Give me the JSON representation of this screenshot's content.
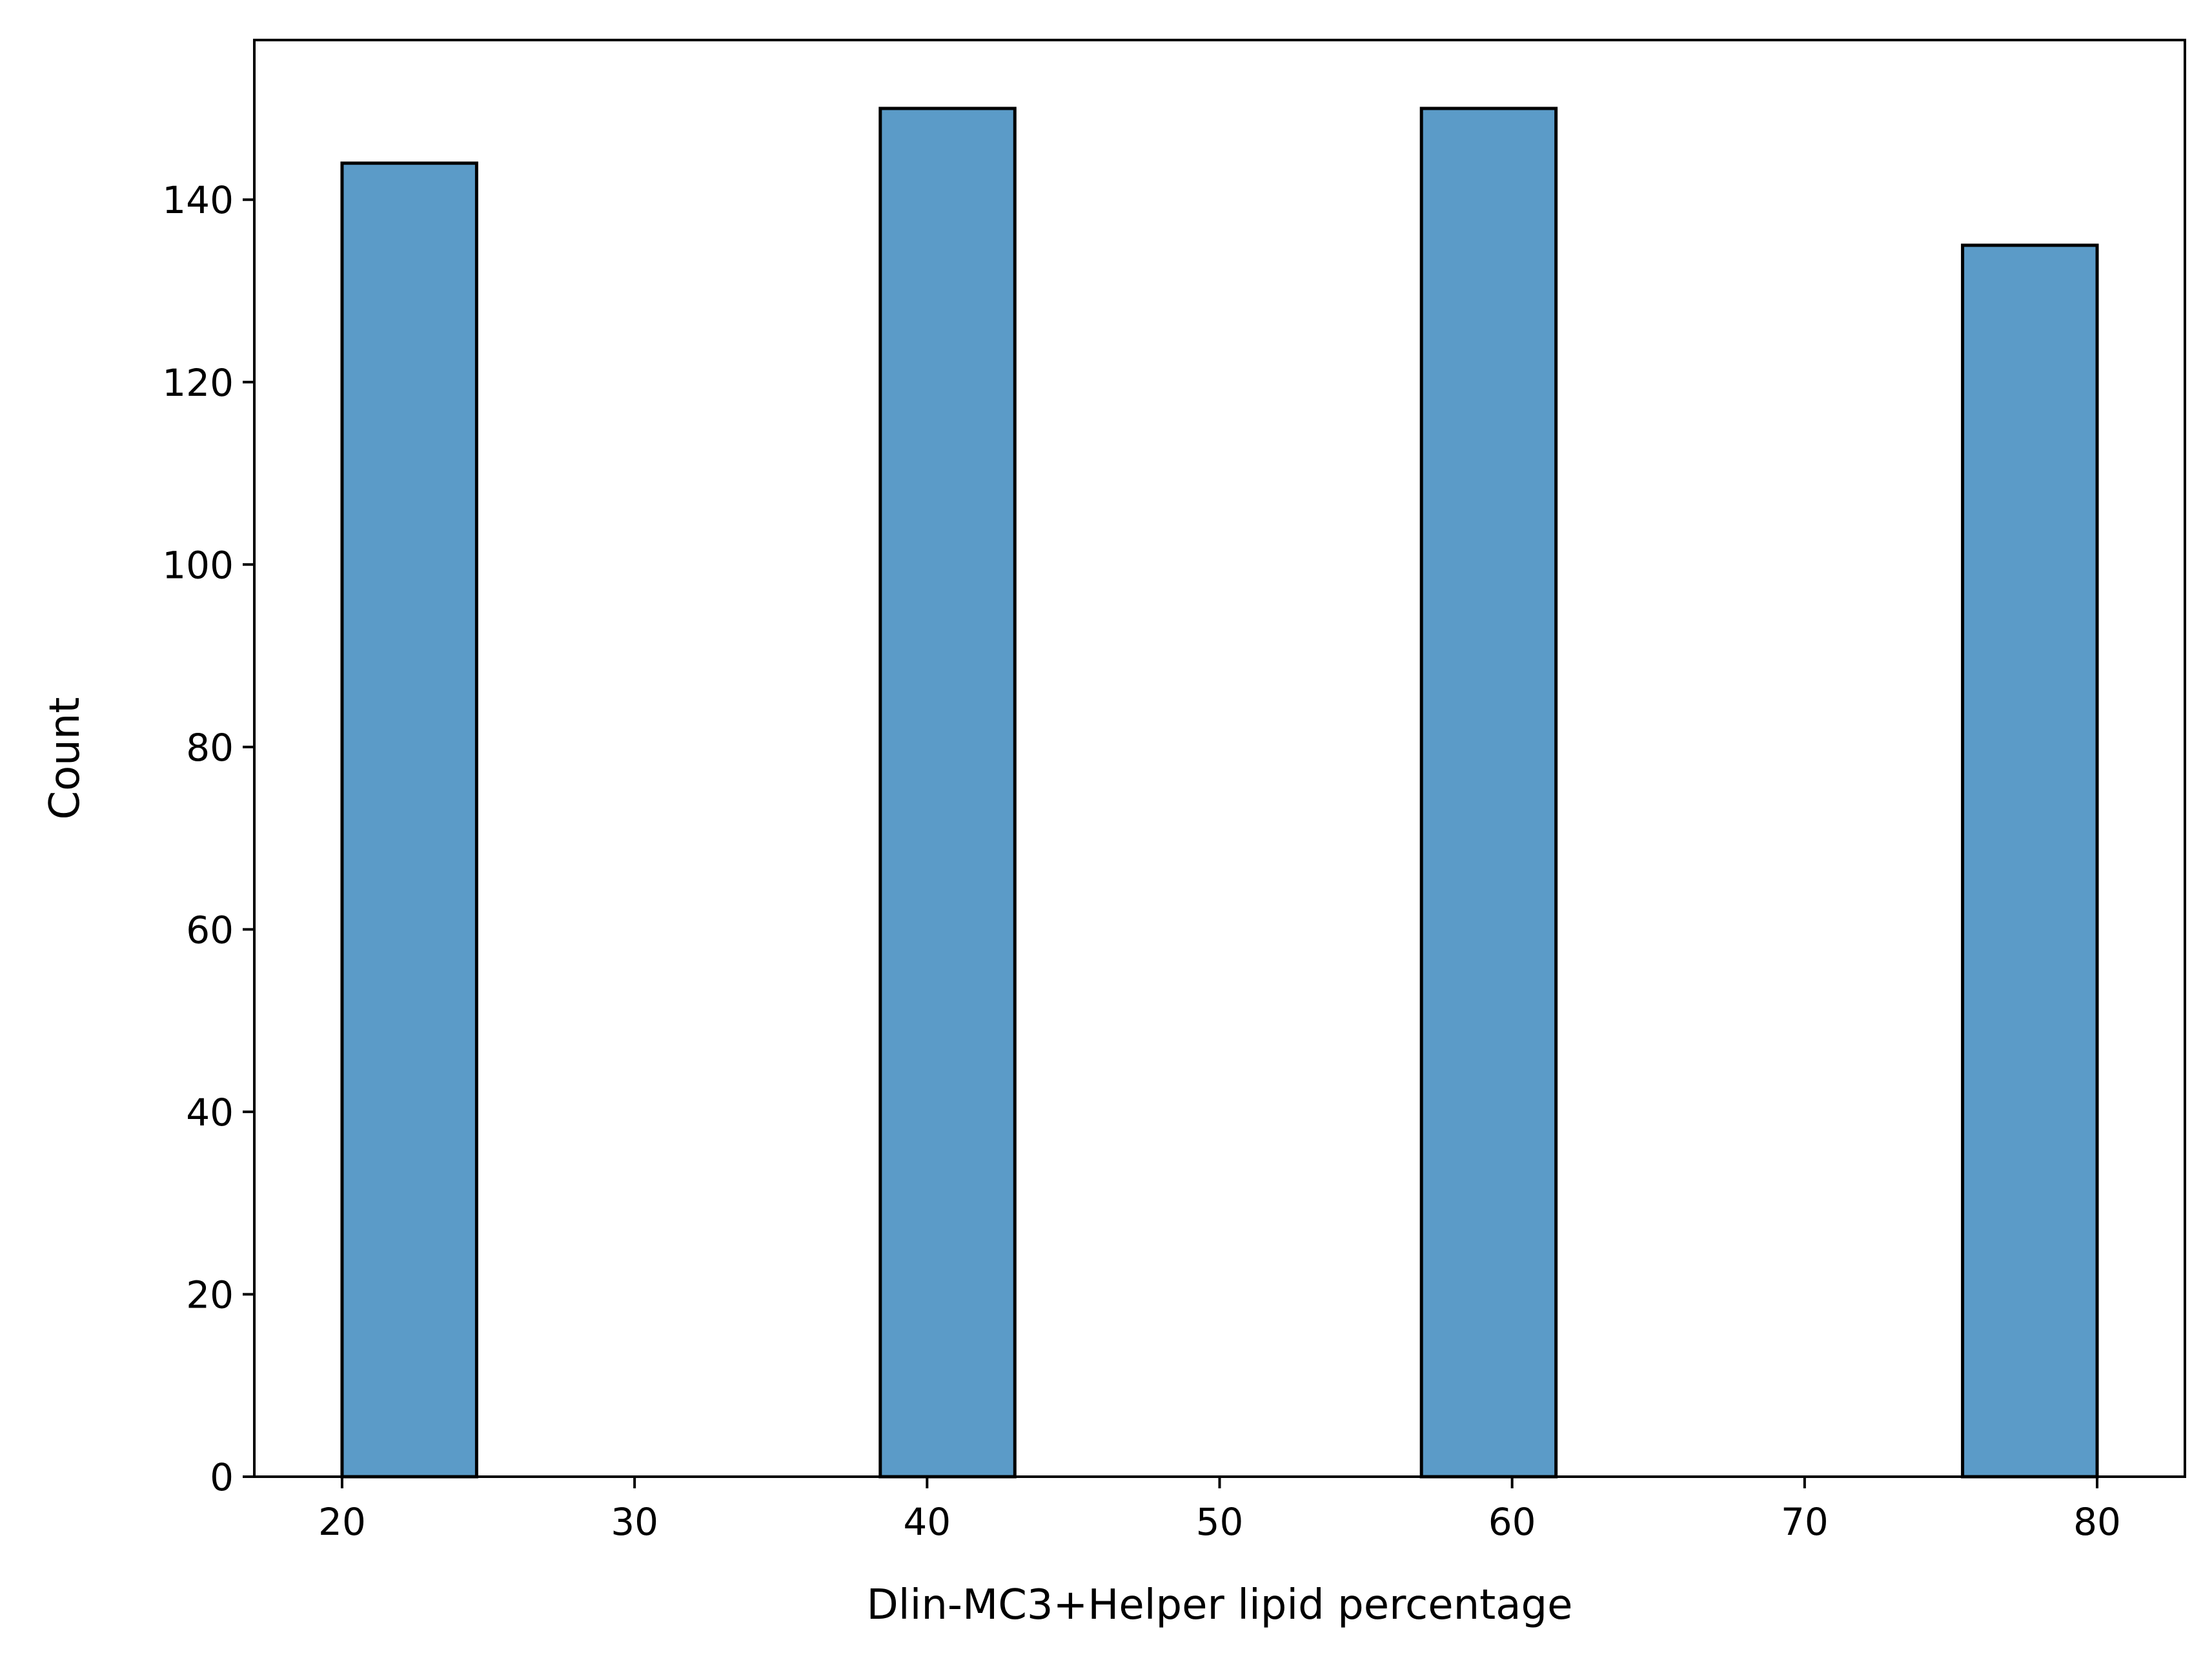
{
  "chart_data": {
    "type": "bar",
    "title": "",
    "xlabel": "Dlin-MC3+Helper lipid percentage",
    "ylabel": "Count",
    "xlim": [
      17,
      83
    ],
    "ylim": [
      0,
      157.5
    ],
    "xticks": [
      20,
      30,
      40,
      50,
      60,
      70,
      80
    ],
    "yticks": [
      0,
      20,
      40,
      60,
      80,
      100,
      120,
      140
    ],
    "bar_color": "#5b9bc8",
    "edge_color": "#000000",
    "grid": false,
    "legend": "none",
    "bars": [
      {
        "x0": 20.0,
        "x1": 24.6,
        "value": 144
      },
      {
        "x0": 38.4,
        "x1": 43.0,
        "value": 150
      },
      {
        "x0": 56.9,
        "x1": 61.5,
        "value": 150
      },
      {
        "x0": 75.4,
        "x1": 80.0,
        "value": 135
      }
    ]
  }
}
